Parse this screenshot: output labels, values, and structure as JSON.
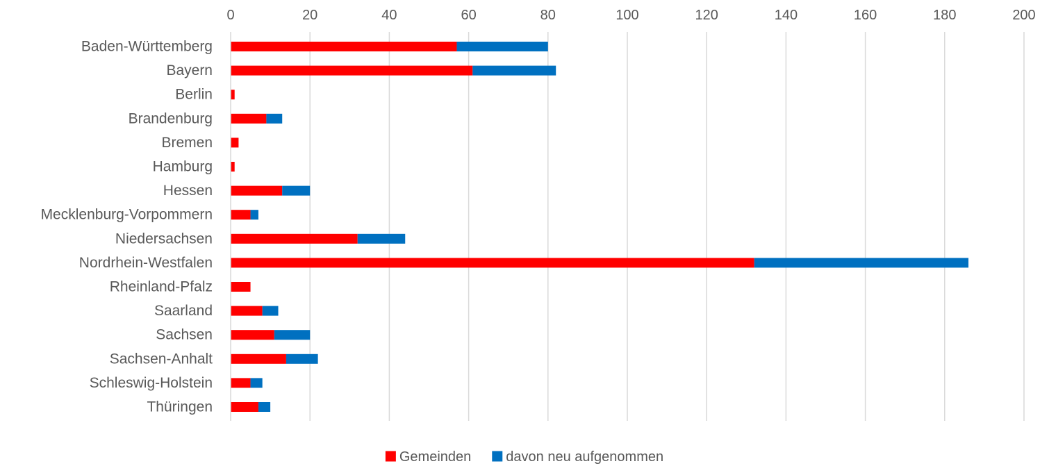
{
  "chart_data": {
    "type": "bar",
    "orientation": "horizontal",
    "stacked": true,
    "title": "",
    "xlabel": "",
    "ylabel": "",
    "xlim": [
      0,
      200
    ],
    "x_ticks": [
      0,
      20,
      40,
      60,
      80,
      100,
      120,
      140,
      160,
      180,
      200
    ],
    "x_tick_position": "top",
    "grid": "vertical",
    "legend_position": "bottom",
    "categories": [
      "Baden-Württemberg",
      "Bayern",
      "Berlin",
      "Brandenburg",
      "Bremen",
      "Hamburg",
      "Hessen",
      "Mecklenburg-Vorpommern",
      "Niedersachsen",
      "Nordrhein-Westfalen",
      "Rheinland-Pfalz",
      "Saarland",
      "Sachsen",
      "Sachsen-Anhalt",
      "Schleswig-Holstein",
      "Thüringen"
    ],
    "series": [
      {
        "name": "Gemeinden",
        "color": "#ff0000",
        "values": [
          57,
          61,
          1,
          9,
          2,
          1,
          13,
          5,
          32,
          132,
          5,
          8,
          11,
          14,
          5,
          7
        ]
      },
      {
        "name": "davon neu aufgenommen",
        "color": "#0070c0",
        "values": [
          23,
          21,
          0,
          4,
          0,
          0,
          7,
          2,
          12,
          54,
          0,
          4,
          9,
          8,
          3,
          3
        ]
      }
    ]
  }
}
